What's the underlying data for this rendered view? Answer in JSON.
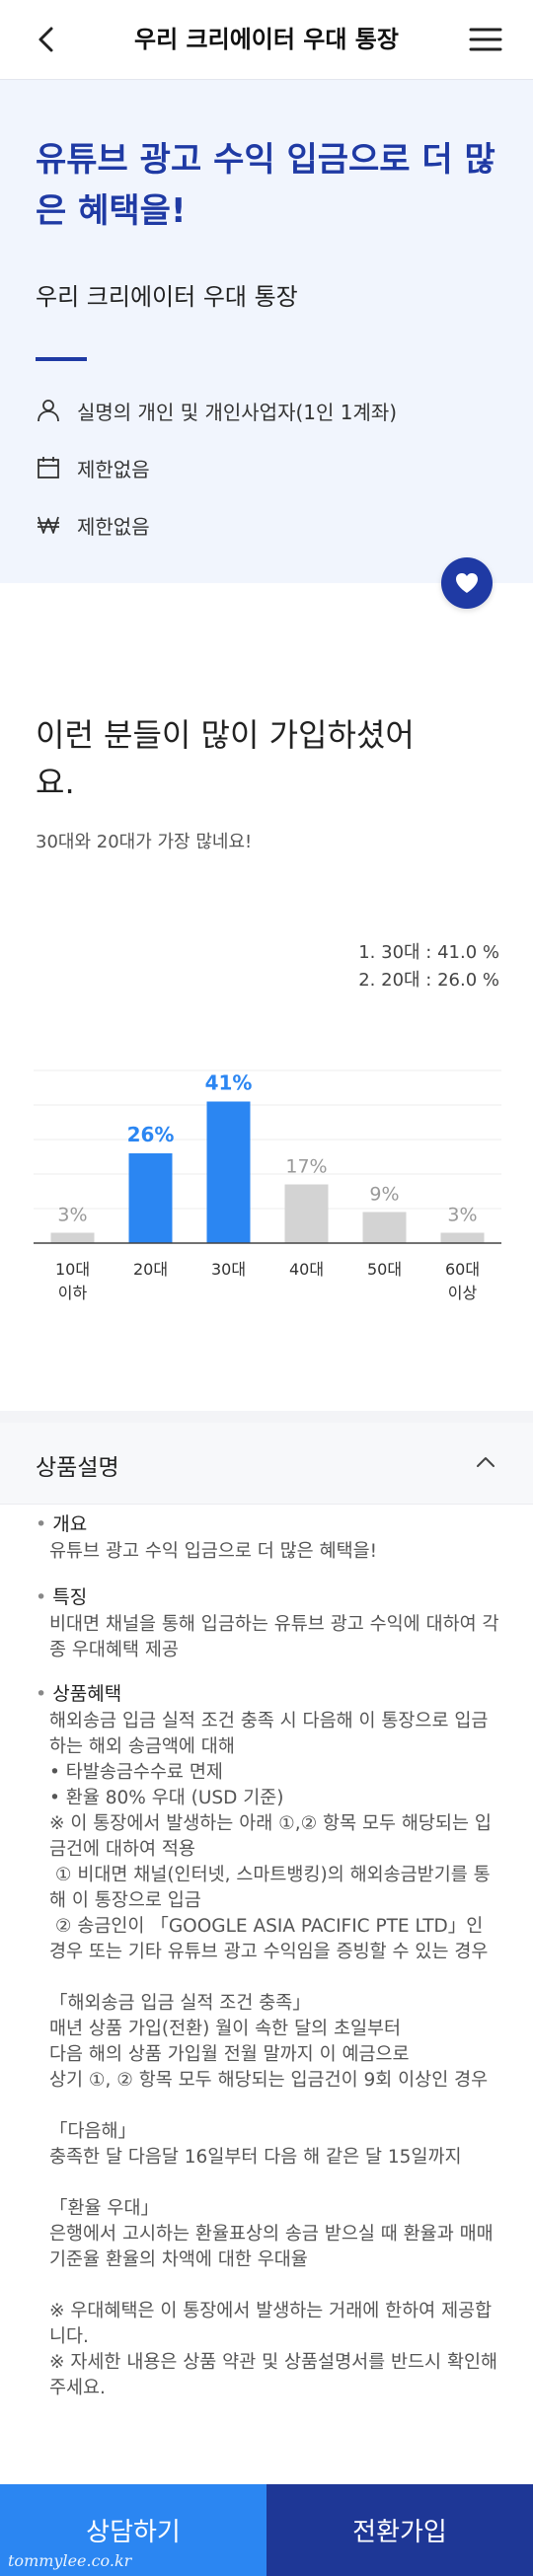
{
  "header": {
    "title": "우리 크리에이터 우대 통장",
    "back_icon": "chevron-left-icon",
    "menu_icon": "hamburger-menu-icon"
  },
  "hero": {
    "headline": "유튜브 광고 수익 입금으로 더 많은 혜택을!",
    "product_name": "우리 크리에이터 우대 통장",
    "accent_color": "#1f3aa4",
    "background_color": "#f1f5fd",
    "items": [
      {
        "icon": "person-icon",
        "text": "실명의 개인 및 개인사업자(1인 1계좌)"
      },
      {
        "icon": "calendar-icon",
        "text": "제한없음"
      },
      {
        "icon": "won-icon",
        "text": "제한없음"
      }
    ],
    "favorite_icon": "heart-icon"
  },
  "stats": {
    "heading": "이런 분들이 많이 가입하셨어요.",
    "subheading": "30대와 20대가 가장 많네요!",
    "legend": [
      "1. 30대 : 41.0 %",
      "2. 20대 : 26.0 %"
    ]
  },
  "chart_data": {
    "type": "bar",
    "categories": [
      "10대\n이하",
      "20대",
      "30대",
      "40대",
      "50대",
      "60대\n이상"
    ],
    "values": [
      3,
      26,
      41,
      17,
      9,
      3
    ],
    "value_labels": [
      "3%",
      "26%",
      "41%",
      "17%",
      "9%",
      "3%"
    ],
    "highlight_color": "#2b86f2",
    "base_color": "#d3d3d3",
    "highlight": [
      false,
      true,
      true,
      false,
      false,
      false
    ],
    "ylim": [
      0,
      60
    ],
    "grid": true
  },
  "description": {
    "title": "상품설명",
    "collapse_icon": "chevron-up-icon",
    "sections": [
      {
        "title": "개요",
        "body": "유튜브 광고 수익 입금으로 더 많은 혜택을!"
      },
      {
        "title": "특징",
        "body": "비대면 채널을 통해 입금하는 유튜브 광고 수익에 대하여 각종 우대혜택 제공"
      },
      {
        "title": "상품혜택",
        "body": "해외송금 입금 실적 조건 충족 시 다음해 이 통장으로 입금하는 해외 송금액에 대해\n• 타발송금수수료 면제\n• 환율 80% 우대 (USD 기준)\n※ 이 통장에서 발생하는 아래 ①,② 항목 모두 해당되는 입금건에 대하여 적용\n ① 비대면 채널(인터넷, 스마트뱅킹)의 해외송금받기를 통해 이 통장으로 입금\n ② 송금인이 「GOOGLE ASIA PACIFIC PTE LTD」인 경우 또는 기타 유튜브 광고 수익임을 증빙할 수 있는 경우\n\n「해외송금 입금 실적 조건 충족」\n매년 상품 가입(전환) 월이 속한 달의 초일부터\n다음 해의 상품 가입월 전월 말까지 이 예금으로\n상기 ①, ② 항목 모두 해당되는 입금건이 9회 이상인 경우\n\n「다음해」\n충족한 달 다음달 16일부터 다음 해 같은 달 15일까지\n\n「환율 우대」\n은행에서 고시하는 환율표상의 송금 받으실 때 환율과 매매기준율 환율의 차액에 대한 우대율\n\n※ 우대혜택은 이 통장에서 발생하는 거래에 한하여 제공합니다.\n※ 자세한 내용은 상품 약관 및 상품설명서를 반드시 확인해 주세요."
      }
    ]
  },
  "cta": {
    "consult_label": "상담하기",
    "convert_label": "전환가입",
    "consult_color": "#2b86f2",
    "convert_color": "#1e3796"
  },
  "watermark": "tommylee.co.kr"
}
